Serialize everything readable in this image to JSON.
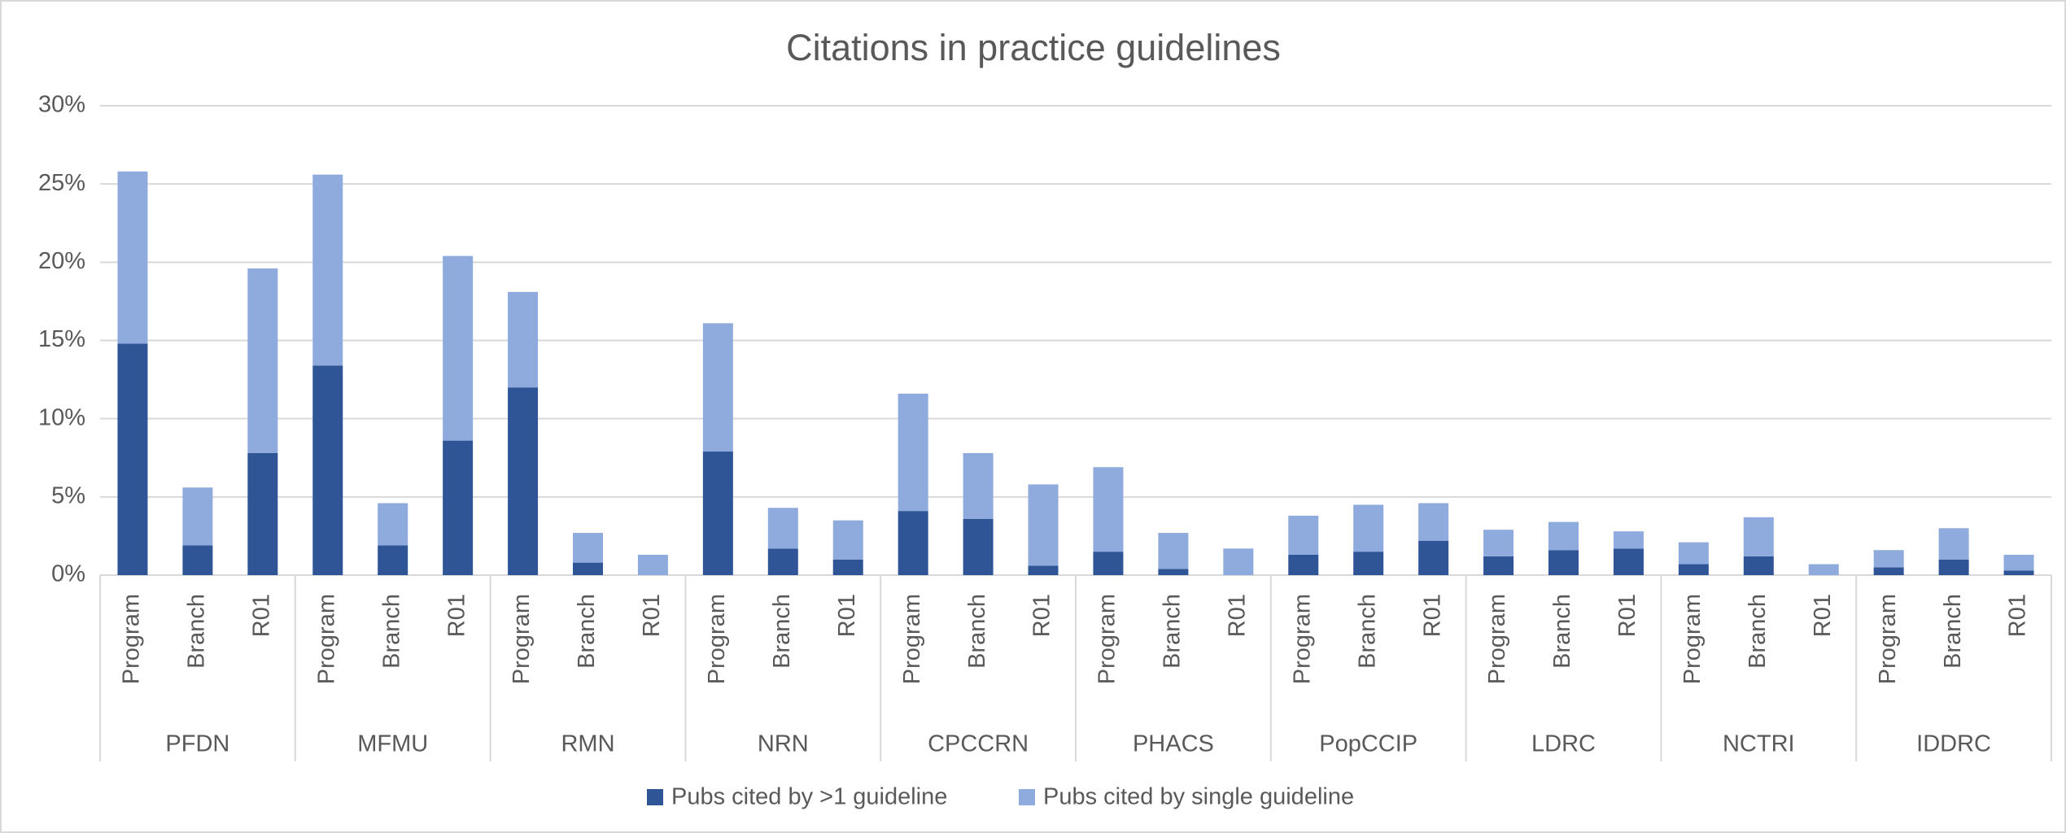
{
  "chart_data": {
    "type": "stacked_bar",
    "title": "Citations in practice guidelines",
    "groups": [
      "PFDN",
      "MFMU",
      "RMN",
      "NRN",
      "CPCCRN",
      "PHACS",
      "PopCCIP",
      "LDRC",
      "NCTRI",
      "IDDRC"
    ],
    "categories": [
      "Program",
      "Branch",
      "R01",
      "Program",
      "Branch",
      "R01",
      "Program",
      "Branch",
      "R01",
      "Program",
      "Branch",
      "R01",
      "Program",
      "Branch",
      "R01",
      "Program",
      "Branch",
      "R01",
      "Program",
      "Branch",
      "R01",
      "Program",
      "Branch",
      "R01",
      "Program",
      "Branch",
      "R01",
      "Program",
      "Branch",
      "R01"
    ],
    "series": [
      {
        "name": "Pubs cited by >1 guideline",
        "color": "#2f5597",
        "values": [
          14.8,
          1.9,
          7.8,
          13.4,
          1.9,
          8.6,
          12.0,
          0.8,
          0,
          7.9,
          1.7,
          1.0,
          4.1,
          3.6,
          0.6,
          1.5,
          0.4,
          0,
          1.3,
          1.5,
          2.2,
          1.2,
          1.6,
          1.7,
          0.7,
          1.2,
          0,
          0.5,
          1.0,
          0.3
        ]
      },
      {
        "name": "Pubs cited by single guideline",
        "color": "#8faadc",
        "values": [
          11.0,
          3.7,
          11.8,
          12.2,
          2.7,
          11.8,
          6.1,
          1.9,
          1.3,
          8.2,
          2.6,
          2.5,
          7.5,
          4.2,
          5.2,
          5.4,
          2.3,
          1.7,
          2.5,
          3.0,
          2.4,
          1.7,
          1.8,
          1.1,
          1.4,
          2.5,
          0.7,
          1.1,
          2.0,
          1.0
        ]
      }
    ],
    "ylim": [
      0,
      30
    ],
    "yticks": [
      {
        "value": 0,
        "label": "0%"
      },
      {
        "value": 5,
        "label": "5%"
      },
      {
        "value": 10,
        "label": "10%"
      },
      {
        "value": 15,
        "label": "15%"
      },
      {
        "value": 20,
        "label": "20%"
      },
      {
        "value": 25,
        "label": "25%"
      },
      {
        "value": 30,
        "label": "30%"
      }
    ],
    "grid": true,
    "legend": "bottom"
  }
}
